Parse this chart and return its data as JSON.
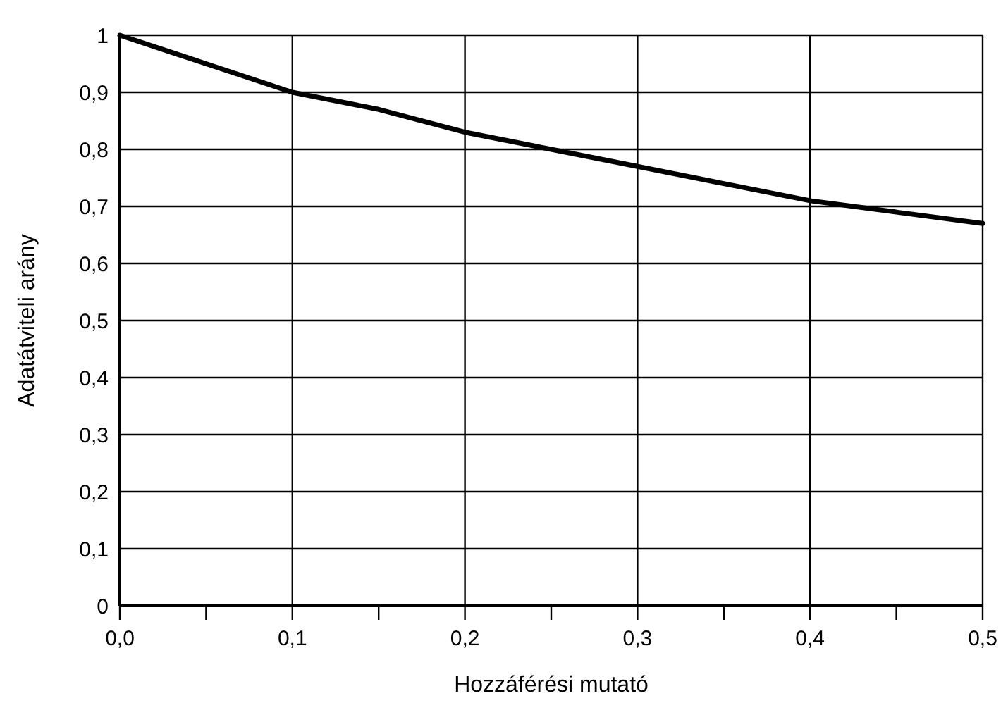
{
  "chart_data": {
    "type": "line",
    "xlabel": "Hozzáférési mutató",
    "ylabel": "Adatátviteli arány",
    "x": [
      0,
      0.05,
      0.1,
      0.15,
      0.2,
      0.25,
      0.3,
      0.35,
      0.4,
      0.45,
      0.5
    ],
    "series": [
      {
        "color": "#000000",
        "values": [
          1,
          0.95,
          0.9,
          0.87,
          0.83,
          0.8,
          0.77,
          0.74,
          0.71,
          0.69,
          0.67
        ]
      }
    ],
    "xlim": [
      0,
      0.5
    ],
    "ylim": [
      0,
      1
    ],
    "xticks": [
      {
        "value": 0,
        "label": "0,0"
      },
      {
        "value": 0.05,
        "label": null
      },
      {
        "value": 0.1,
        "label": "0,1"
      },
      {
        "value": 0.15,
        "label": null
      },
      {
        "value": 0.2,
        "label": "0,2"
      },
      {
        "value": 0.25,
        "label": null
      },
      {
        "value": 0.3,
        "label": "0,3"
      },
      {
        "value": 0.35,
        "label": null
      },
      {
        "value": 0.4,
        "label": "0,4"
      },
      {
        "value": 0.45,
        "label": null
      },
      {
        "value": 0.5,
        "label": "0,5"
      }
    ],
    "yticks": [
      0,
      {
        "value": 0.1,
        "label": "0,1"
      },
      {
        "value": 0.2,
        "label": "0,2"
      },
      {
        "value": 0.3,
        "label": "0,3"
      },
      {
        "value": 0.4,
        "label": "0,4"
      },
      {
        "value": 0.5,
        "label": "0,5"
      },
      {
        "value": 0.6,
        "label": "0,6"
      },
      {
        "value": 0.7,
        "label": "0,7"
      },
      {
        "value": 0.8,
        "label": "0,8"
      },
      {
        "value": 0.9,
        "label": "0,9"
      },
      1
    ],
    "grid": true,
    "marker": "none",
    "line_style": "solid"
  }
}
